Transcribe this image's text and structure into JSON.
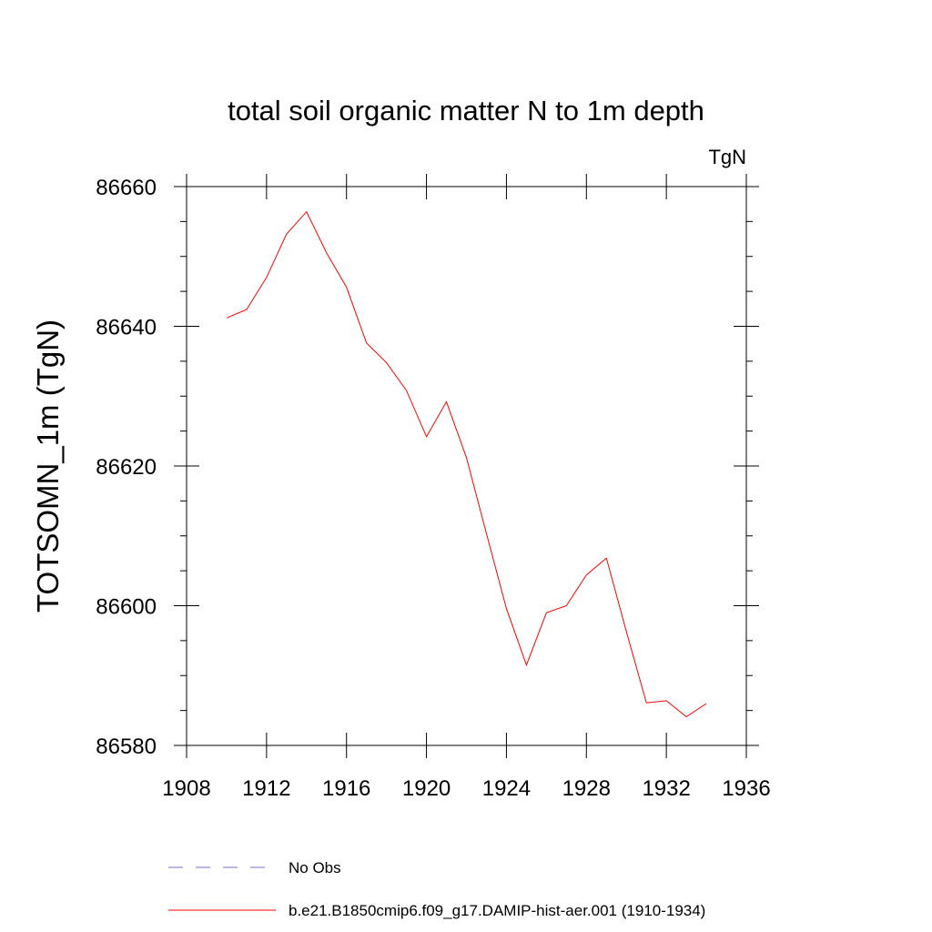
{
  "chart_data": {
    "type": "line",
    "title": "total soil organic matter N to 1m depth",
    "units_label": "TgN",
    "ylabel": "TOTSOMN_1m  (TgN)",
    "xlabel": "",
    "xlim": [
      1908,
      1936
    ],
    "ylim": [
      86580,
      86660
    ],
    "x_ticks": [
      1908,
      1912,
      1916,
      1920,
      1924,
      1928,
      1932,
      1936
    ],
    "x_tick_labels": [
      "1908",
      "1912",
      "1916",
      "1920",
      "1924",
      "1928",
      "1932",
      "1936"
    ],
    "y_ticks": [
      86580,
      86600,
      86620,
      86640,
      86660
    ],
    "y_tick_labels": [
      "86580",
      "86600",
      "86620",
      "86640",
      "86660"
    ],
    "grid": false,
    "series": [
      {
        "name": "b.e21.B1850cmip6.f09_g17.DAMIP-hist-aer.001 (1910-1934)",
        "color": "#ff0000",
        "x": [
          1910,
          1911,
          1912,
          1913,
          1914,
          1915,
          1916,
          1917,
          1918,
          1919,
          1920,
          1921,
          1922,
          1923,
          1924,
          1925,
          1926,
          1927,
          1928,
          1929,
          1930,
          1931,
          1932,
          1933,
          1934
        ],
        "y": [
          86641.2,
          86642.4,
          86647.0,
          86653.2,
          86656.4,
          86650.5,
          86645.6,
          86637.6,
          86634.8,
          86630.8,
          86624.2,
          86629.2,
          86621.2,
          86610.3,
          86599.6,
          86591.5,
          86599.0,
          86600.0,
          86604.4,
          86606.8,
          86596.3,
          86586.1,
          86586.4,
          86584.1,
          86586.0
        ]
      }
    ],
    "legend": {
      "position": "bottom",
      "entries": [
        {
          "label": "No Obs",
          "style": "dashed",
          "color": "#7b68c8"
        },
        {
          "label": "b.e21.B1850cmip6.f09_g17.DAMIP-hist-aer.001 (1910-1934)",
          "style": "solid",
          "color": "#ff0000"
        }
      ]
    }
  }
}
